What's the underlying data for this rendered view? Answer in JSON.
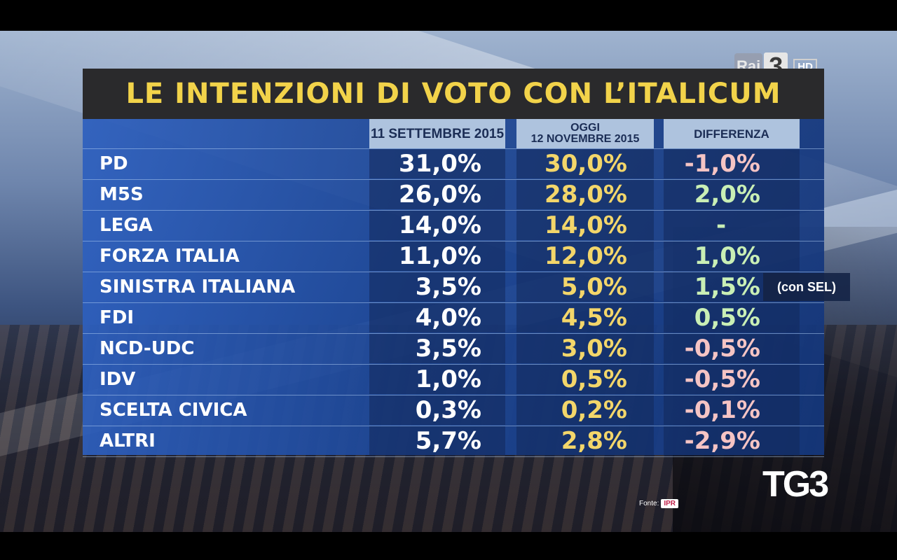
{
  "broadcast": {
    "channel_logo": "Rai 3",
    "channel_name": "Rai",
    "channel_number": "3",
    "hd_badge": "HD",
    "program_logo": "TG3",
    "source_label": "Fonte:",
    "source_logo": "IPR"
  },
  "chart_data": {
    "type": "table",
    "title": "LE INTENZIONI DI VOTO CON L’ITALICUM",
    "columns": [
      {
        "label_lines": [
          "11 SETTEMBRE 2015"
        ]
      },
      {
        "label_lines": [
          "OGGI",
          "12 NOVEMBRE 2015"
        ]
      },
      {
        "label_lines": [
          "DIFFERENZA"
        ]
      }
    ],
    "rows": [
      {
        "party": "PD",
        "sept": "31,0%",
        "nov": "30,0%",
        "diff": "-1,0%",
        "sign": "neg"
      },
      {
        "party": "M5S",
        "sept": "26,0%",
        "nov": "28,0%",
        "diff": "2,0%",
        "sign": "pos"
      },
      {
        "party": "LEGA",
        "sept": "14,0%",
        "nov": "14,0%",
        "diff": "-",
        "sign": "none"
      },
      {
        "party": "FORZA ITALIA",
        "sept": "11,0%",
        "nov": "12,0%",
        "diff": "1,0%",
        "sign": "pos"
      },
      {
        "party": "SINISTRA ITALIANA",
        "sept": "3,5%",
        "nov": "5,0%",
        "diff": "1,5%",
        "sign": "pos",
        "note": "(con SEL)"
      },
      {
        "party": "FDI",
        "sept": "4,0%",
        "nov": "4,5%",
        "diff": "0,5%",
        "sign": "pos"
      },
      {
        "party": "NCD-UDC",
        "sept": "3,5%",
        "nov": "3,0%",
        "diff": "-0,5%",
        "sign": "neg"
      },
      {
        "party": "IDV",
        "sept": "1,0%",
        "nov": "0,5%",
        "diff": "-0,5%",
        "sign": "neg"
      },
      {
        "party": "SCELTA CIVICA",
        "sept": "0,3%",
        "nov": "0,2%",
        "diff": "-0,1%",
        "sign": "neg"
      },
      {
        "party": "ALTRI",
        "sept": "5,7%",
        "nov": "2,8%",
        "diff": "-2,9%",
        "sign": "neg"
      }
    ],
    "values_numeric": {
      "sept": [
        31.0,
        26.0,
        14.0,
        11.0,
        3.5,
        4.0,
        3.5,
        1.0,
        0.3,
        5.7
      ],
      "nov": [
        30.0,
        28.0,
        14.0,
        12.0,
        5.0,
        4.5,
        3.0,
        0.5,
        0.2,
        2.8
      ],
      "diff": [
        -1.0,
        2.0,
        0,
        1.0,
        1.5,
        0.5,
        -0.5,
        -0.5,
        -0.1,
        -2.9
      ]
    },
    "colors": {
      "title": "#f2d34a",
      "title_bg": "#2a2a2c",
      "header_bg": "#aec3de",
      "header_text": "#1b2d55",
      "current_values": "#f3d66a",
      "previous_values": "#ffffff",
      "diff_negative": "#f5c4c4",
      "diff_positive": "#c9efb5"
    }
  }
}
